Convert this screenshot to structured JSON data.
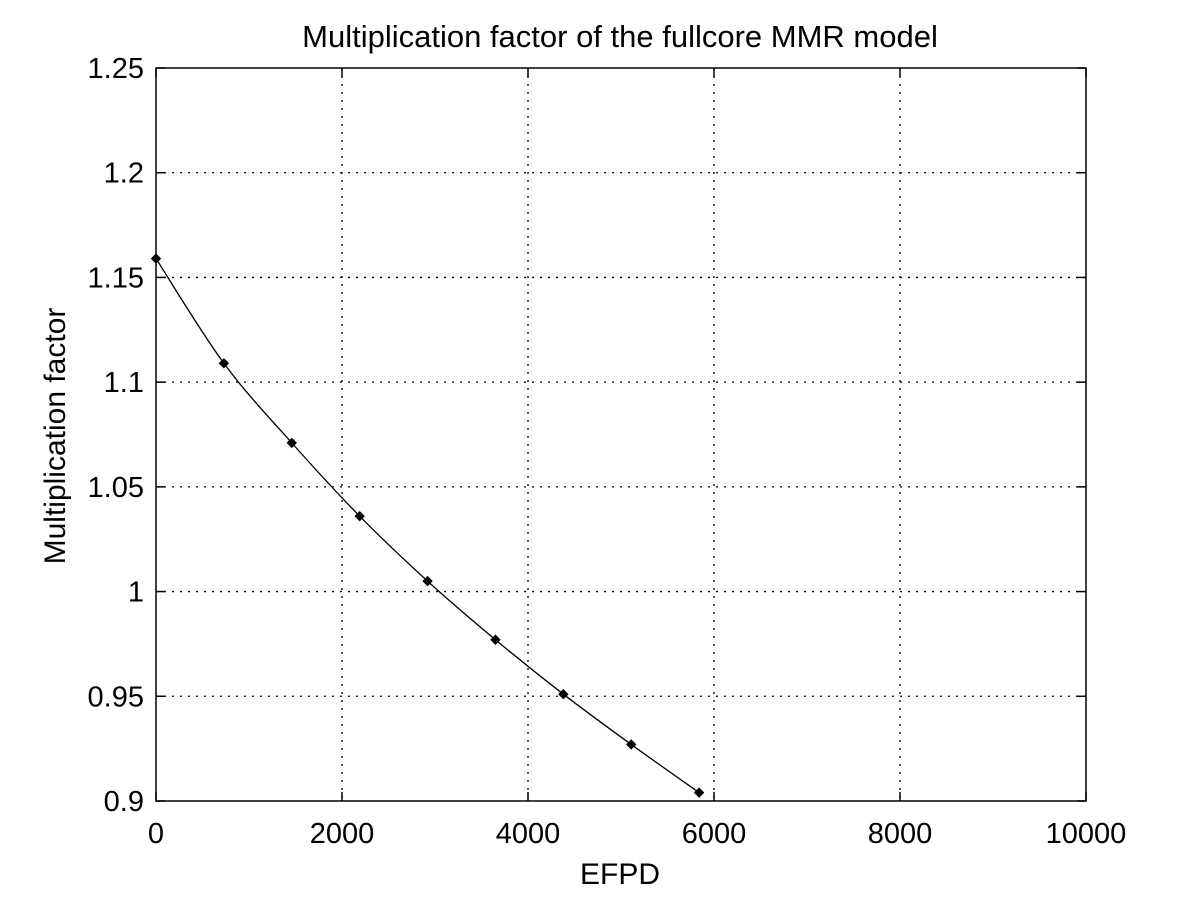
{
  "chart_data": {
    "type": "line",
    "title": "Multiplication factor of the fullcore MMR model",
    "xlabel": "EFPD",
    "ylabel": "Multiplication factor",
    "xlim": [
      0,
      10000
    ],
    "ylim": [
      0.9,
      1.25
    ],
    "xticks": [
      0,
      2000,
      4000,
      6000,
      8000,
      10000
    ],
    "yticks": [
      0.9,
      0.95,
      1,
      1.05,
      1.1,
      1.15,
      1.2,
      1.25
    ],
    "xtick_labels": [
      "0",
      "2000",
      "4000",
      "6000",
      "8000",
      "10000"
    ],
    "ytick_labels": [
      "0.9",
      "0.95",
      "1",
      "1.05",
      "1.1",
      "1.15",
      "1.2",
      "1.25"
    ],
    "grid": true,
    "series": [
      {
        "marker": "diamond",
        "color": "#000000",
        "x": [
          0,
          730,
          1460,
          2190,
          2920,
          3650,
          4380,
          5110,
          5840
        ],
        "y": [
          1.159,
          1.109,
          1.071,
          1.036,
          1.005,
          0.977,
          0.951,
          0.927,
          0.904
        ]
      }
    ]
  }
}
